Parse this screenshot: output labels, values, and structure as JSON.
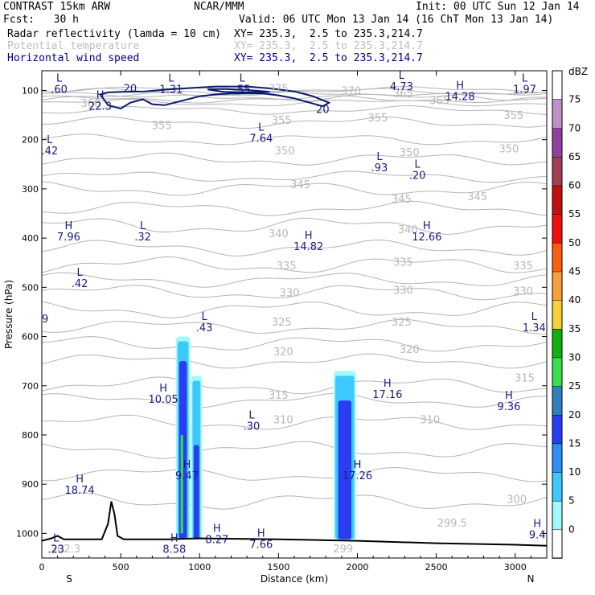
{
  "header": {
    "line1_left": "CONTRAST 15km ARW",
    "line1_mid": "NCAR/MMM",
    "line1_right": "Init: 00 UTC Sun 12 Jan 14",
    "line2_left": "Fcst:   30 h",
    "line2_right": "Valid: 06 UTC Mon 13 Jan 14 (16 ChT Mon 13 Jan 14)",
    "fields": [
      {
        "name": "Radar reflectivity (lamda = 10 cm)",
        "xy": "XY= 235.3,  2.5 to 235.3,214.7",
        "color": "#000000"
      },
      {
        "name": "Potential temperature",
        "xy": "XY= 235.3,  2.5 to 235.3,214.7",
        "color": "#bdbdbd"
      },
      {
        "name": "Horizontal wind speed",
        "xy": "XY= 235.3,  2.5 to 235.3,214.7",
        "color": "#000080"
      }
    ]
  },
  "chart_data": {
    "type": "heatmap",
    "xlabel": "Distance (km)",
    "ylabel": "Pressure (hPa)",
    "xlim": [
      0,
      3200
    ],
    "ylim": [
      1050,
      60
    ],
    "x_ticks": [
      0,
      500,
      1000,
      1500,
      2000,
      2500,
      3000
    ],
    "y_ticks": [
      100,
      200,
      300,
      400,
      500,
      600,
      700,
      800,
      900,
      1000
    ],
    "x_end_labels": {
      "left": "S",
      "right": "N"
    },
    "colorbar": {
      "title": "dBZ",
      "levels": [
        0,
        5,
        10,
        15,
        20,
        25,
        30,
        35,
        40,
        45,
        50,
        55,
        60,
        65,
        70,
        75
      ],
      "colors": [
        "#ffffff",
        "#9ffbfb",
        "#3fc8ff",
        "#2e8ef5",
        "#2b3df0",
        "#3080c0",
        "#38e050",
        "#10b010",
        "#f8d038",
        "#f8a040",
        "#f86010",
        "#f01010",
        "#c01010",
        "#a04050",
        "#9040a0",
        "#c090c8"
      ]
    },
    "theta_labels": [
      {
        "t": "370",
        "x": 1960,
        "p": 100
      },
      {
        "t": "375",
        "x": 1500,
        "p": 95
      },
      {
        "t": "365",
        "x": 2290,
        "p": 105
      },
      {
        "t": "360",
        "x": 310,
        "p": 125
      },
      {
        "t": "365",
        "x": 2520,
        "p": 120
      },
      {
        "t": "355",
        "x": 2990,
        "p": 150
      },
      {
        "t": "355",
        "x": 1520,
        "p": 160
      },
      {
        "t": "355",
        "x": 2130,
        "p": 155
      },
      {
        "t": "355",
        "x": 760,
        "p": 170
      },
      {
        "t": "350",
        "x": 1540,
        "p": 222
      },
      {
        "t": "350",
        "x": 2330,
        "p": 225
      },
      {
        "t": "350",
        "x": 2960,
        "p": 218
      },
      {
        "t": "345",
        "x": 1640,
        "p": 290
      },
      {
        "t": "345",
        "x": 2280,
        "p": 320
      },
      {
        "t": "345",
        "x": 2760,
        "p": 315
      },
      {
        "t": "340",
        "x": 1500,
        "p": 390
      },
      {
        "t": "340",
        "x": 2320,
        "p": 382
      },
      {
        "t": "335",
        "x": 1550,
        "p": 455
      },
      {
        "t": "335",
        "x": 2290,
        "p": 448
      },
      {
        "t": "335",
        "x": 3050,
        "p": 455
      },
      {
        "t": "330",
        "x": 1570,
        "p": 510
      },
      {
        "t": "330",
        "x": 2290,
        "p": 505
      },
      {
        "t": "330",
        "x": 3050,
        "p": 507
      },
      {
        "t": "325",
        "x": 1520,
        "p": 570
      },
      {
        "t": "325",
        "x": 2280,
        "p": 570
      },
      {
        "t": "320",
        "x": 1530,
        "p": 630
      },
      {
        "t": "320",
        "x": 2330,
        "p": 625
      },
      {
        "t": "315",
        "x": 1500,
        "p": 718
      },
      {
        "t": "315",
        "x": 3060,
        "p": 683
      },
      {
        "t": "310",
        "x": 1530,
        "p": 768
      },
      {
        "t": "310",
        "x": 2460,
        "p": 768
      },
      {
        "t": "300",
        "x": 3010,
        "p": 930
      },
      {
        "t": "299.5",
        "x": 2600,
        "p": 978
      },
      {
        "t": "302.3",
        "x": 150,
        "p": 1030
      },
      {
        "t": "299",
        "x": 1910,
        "p": 1030
      }
    ],
    "hl_labels": [
      {
        "t": "L",
        "v": ".60",
        "x": 110,
        "p": 85
      },
      {
        "t": "L",
        "v": "1.31",
        "x": 820,
        "p": 85
      },
      {
        "t": "L",
        "v": ".55",
        "x": 1270,
        "p": 85
      },
      {
        "t": "L",
        "v": "4.73",
        "x": 2280,
        "p": 80
      },
      {
        "t": "H",
        "v": "14.28",
        "x": 2650,
        "p": 100
      },
      {
        "t": "L",
        "v": "1.97",
        "x": 3060,
        "p": 85
      },
      {
        "t": "H",
        "v": "22.3",
        "x": 370,
        "p": 120
      },
      {
        "t": "L",
        "v": "7.64",
        "x": 1390,
        "p": 185
      },
      {
        "t": "L",
        "v": ".42",
        "x": 50,
        "p": 210
      },
      {
        "t": "L",
        "v": ".93",
        "x": 2140,
        "p": 245
      },
      {
        "t": "L",
        "v": ".20",
        "x": 2380,
        "p": 260
      },
      {
        "t": "H",
        "v": "7.96",
        "x": 170,
        "p": 385
      },
      {
        "t": "L",
        "v": ".32",
        "x": 640,
        "p": 385
      },
      {
        "t": "H",
        "v": "14.82",
        "x": 1690,
        "p": 405
      },
      {
        "t": "H",
        "v": "12.66",
        "x": 2440,
        "p": 385
      },
      {
        "t": "L",
        "v": ".42",
        "x": 240,
        "p": 480
      },
      {
        "t": "L",
        "v": ".43",
        "x": 1030,
        "p": 570
      },
      {
        "t": "L",
        "v": "1.34",
        "x": 3120,
        "p": 570
      },
      {
        "t": "H",
        "v": "10.05",
        "x": 770,
        "p": 715
      },
      {
        "t": "H",
        "v": "17.16",
        "x": 2190,
        "p": 705
      },
      {
        "t": "H",
        "v": "9.36",
        "x": 2960,
        "p": 730
      },
      {
        "t": "L",
        "v": ".30",
        "x": 1330,
        "p": 770
      },
      {
        "t": "H",
        "v": "9.47",
        "x": 920,
        "p": 870
      },
      {
        "t": "H",
        "v": "17.26",
        "x": 2000,
        "p": 870
      },
      {
        "t": "H",
        "v": "18.74",
        "x": 240,
        "p": 900
      },
      {
        "t": "H",
        "v": "8.27",
        "x": 1110,
        "p": 1000
      },
      {
        "t": "H",
        "v": "8.58",
        "x": 840,
        "p": 1020
      },
      {
        "t": "H",
        "v": "7.66",
        "x": 1390,
        "p": 1010
      },
      {
        "t": "L",
        "v": ".23",
        "x": 90,
        "p": 1020
      },
      {
        "t": "H",
        "v": "9.4",
        "x": 3140,
        "p": 990
      }
    ],
    "side_digit": {
      "t": "9",
      "x": 15,
      "p": 563
    },
    "wind_contour_label": {
      "t": "20",
      "x": 1780,
      "p": 138
    },
    "wind_contour_label2": {
      "t": "20",
      "x": 560,
      "p": 95
    },
    "reflectivity_columns": [
      {
        "x0": 860,
        "x1": 930,
        "ptop": 600,
        "core_top": 650
      },
      {
        "x0": 955,
        "x1": 1005,
        "ptop": 680,
        "core_top": 820
      },
      {
        "x0": 1860,
        "x1": 1980,
        "ptop": 670,
        "core_top": 730
      }
    ],
    "terrain": [
      [
        0,
        1015
      ],
      [
        60,
        1010
      ],
      [
        100,
        1005
      ],
      [
        140,
        1012
      ],
      [
        250,
        1012
      ],
      [
        380,
        1012
      ],
      [
        420,
        980
      ],
      [
        440,
        935
      ],
      [
        460,
        960
      ],
      [
        480,
        1005
      ],
      [
        520,
        1012
      ],
      [
        800,
        1012
      ],
      [
        1000,
        1010
      ],
      [
        1500,
        1012
      ],
      [
        2000,
        1015
      ],
      [
        2500,
        1020
      ],
      [
        3000,
        1023
      ],
      [
        3200,
        1025
      ]
    ]
  }
}
